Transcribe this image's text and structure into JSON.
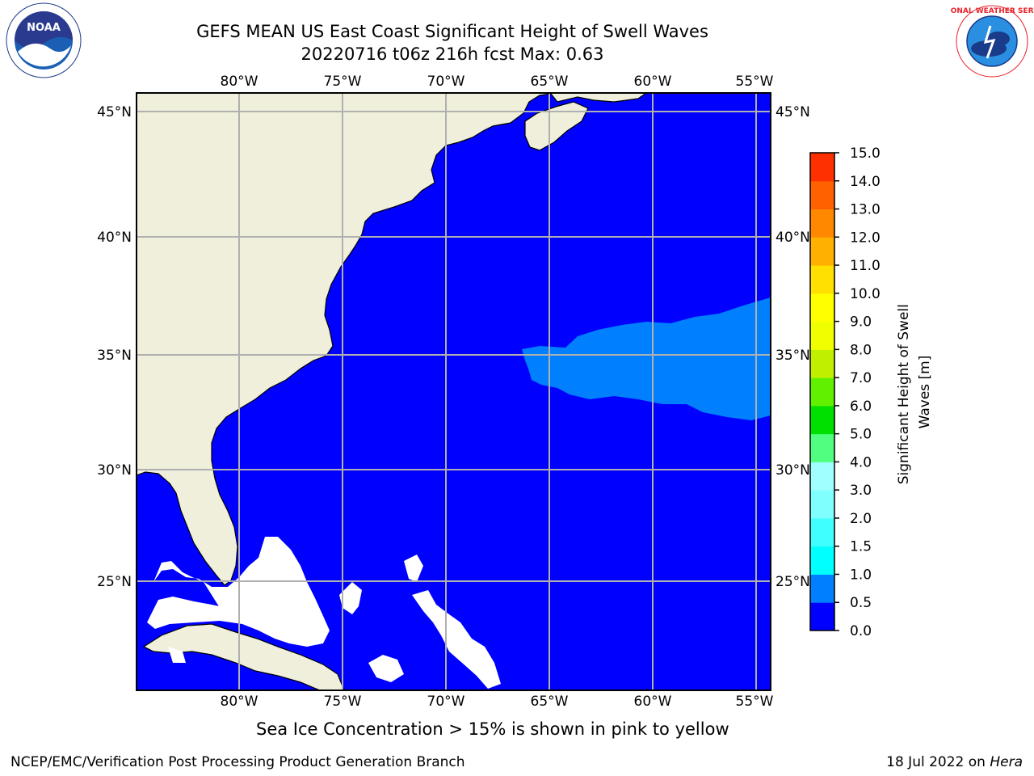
{
  "header": {
    "title": "GEFS MEAN US East Coast Significant Height of Swell Waves",
    "subtitle": "20220716 t06z 216h fcst   Max: 0.63"
  },
  "logos": {
    "left": {
      "icon": "noaa-logo-icon",
      "text": "NOAA"
    },
    "right": {
      "icon": "nws-logo-icon",
      "text": "NATIONAL WEATHER SERVICE"
    }
  },
  "map": {
    "lon_labels": [
      "80°W",
      "75°W",
      "70°W",
      "65°W",
      "60°W",
      "55°W"
    ],
    "lat_labels": [
      "45°N",
      "40°N",
      "35°N",
      "30°N",
      "25°N"
    ],
    "colors": {
      "ocean": "#0000ff",
      "swell_05_10": "#0080ff",
      "land": "#efefdc",
      "grid": "#b0b0b0"
    }
  },
  "colorbar": {
    "label": "Significant Height of Swell Waves [m]",
    "label_lines": [
      "Significant Height of Swell",
      "Waves [m]"
    ],
    "ticks": [
      "0.0",
      "0.5",
      "1.0",
      "1.5",
      "2.0",
      "3.0",
      "4.0",
      "5.0",
      "6.0",
      "7.0",
      "8.0",
      "9.0",
      "10.0",
      "11.0",
      "12.0",
      "13.0",
      "14.0",
      "15.0"
    ],
    "colors": [
      "#0000ff",
      "#0080ff",
      "#00ffff",
      "#40ffff",
      "#80ffff",
      "#a0ffff",
      "#50ff80",
      "#00e000",
      "#60f000",
      "#c0f000",
      "#f0ff00",
      "#ffff00",
      "#ffe000",
      "#ffb000",
      "#ff8800",
      "#ff6000",
      "#ff3000",
      "#ff0000"
    ]
  },
  "footer": {
    "note": "Sea Ice Concentration > 15% is shown in pink to yellow",
    "left": "NCEP/EMC/Verification Post Processing Product Generation Branch",
    "right_date": "18 Jul 2022 on ",
    "right_host": "Hera"
  }
}
